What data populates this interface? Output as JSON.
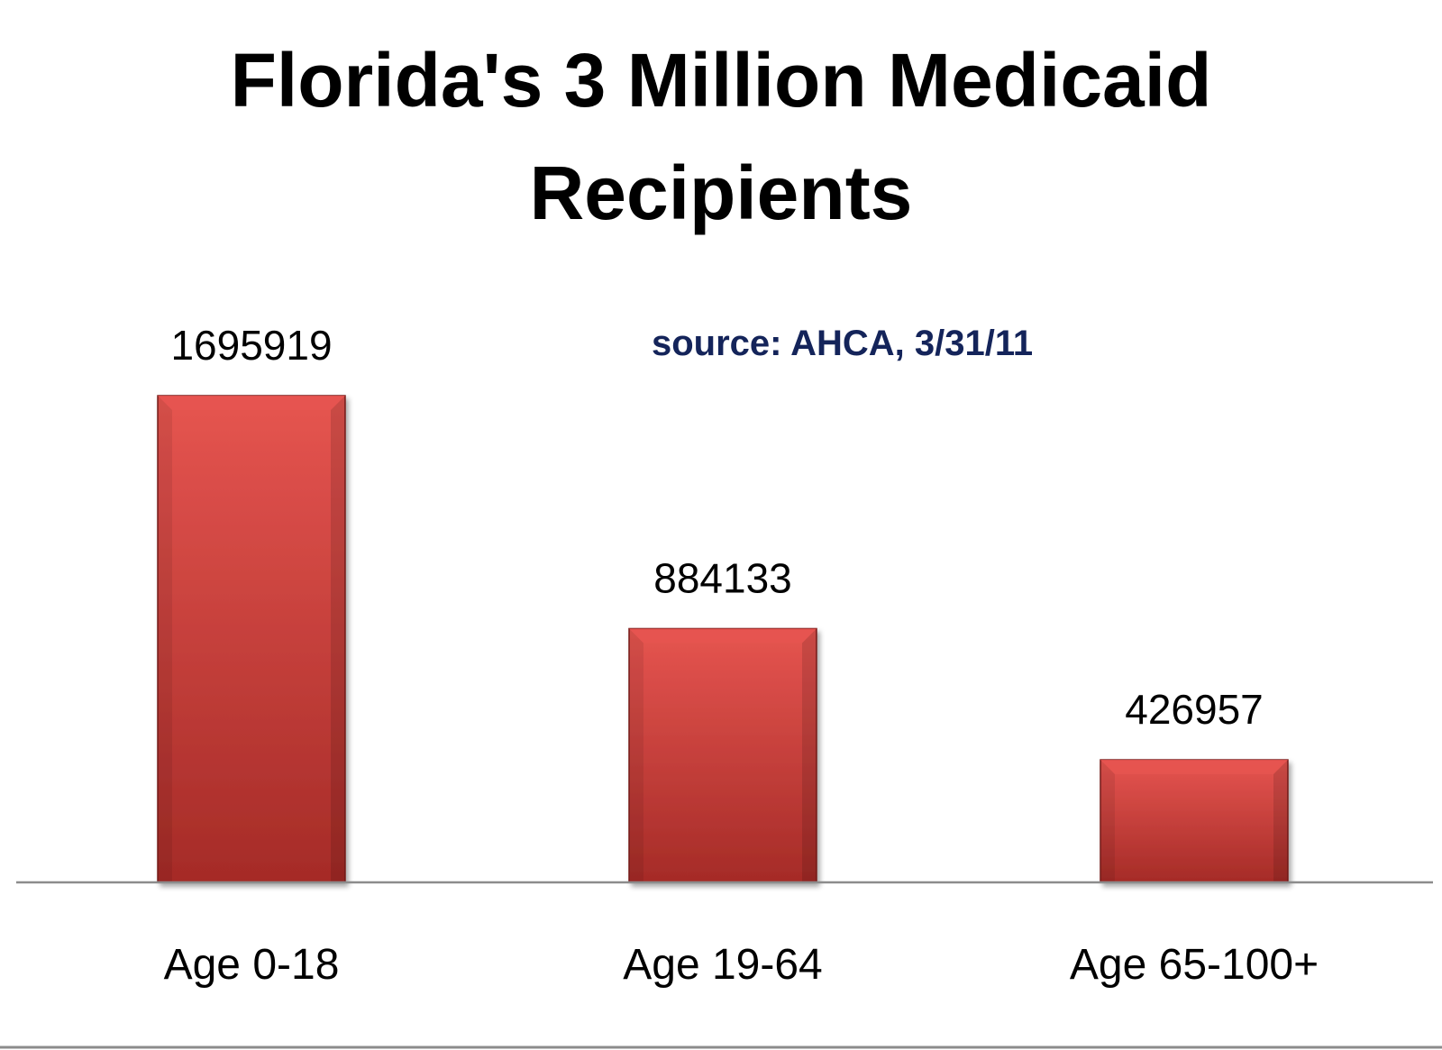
{
  "chart_data": {
    "type": "bar",
    "title_lines": [
      "Florida's 3 Million Medicaid",
      "Recipients"
    ],
    "annotation": "source:  AHCA, 3/31/11",
    "categories": [
      "Age 0-18",
      "Age 19-64",
      "Age 65-100+"
    ],
    "values": [
      1695919,
      884133,
      426957
    ],
    "value_labels": [
      "1695919",
      "884133",
      "426957"
    ],
    "ylim": [
      0,
      1800000
    ],
    "grid": false,
    "legend": "none",
    "y_axis_shown": false
  },
  "colors": {
    "bar_fill": "#d0413c",
    "bar_dark": "#a52b27",
    "bar_light": "#e65550",
    "axis_line": "#8c8c8c",
    "title": "#000000",
    "annotation": "#14245a",
    "text": "#000000"
  }
}
